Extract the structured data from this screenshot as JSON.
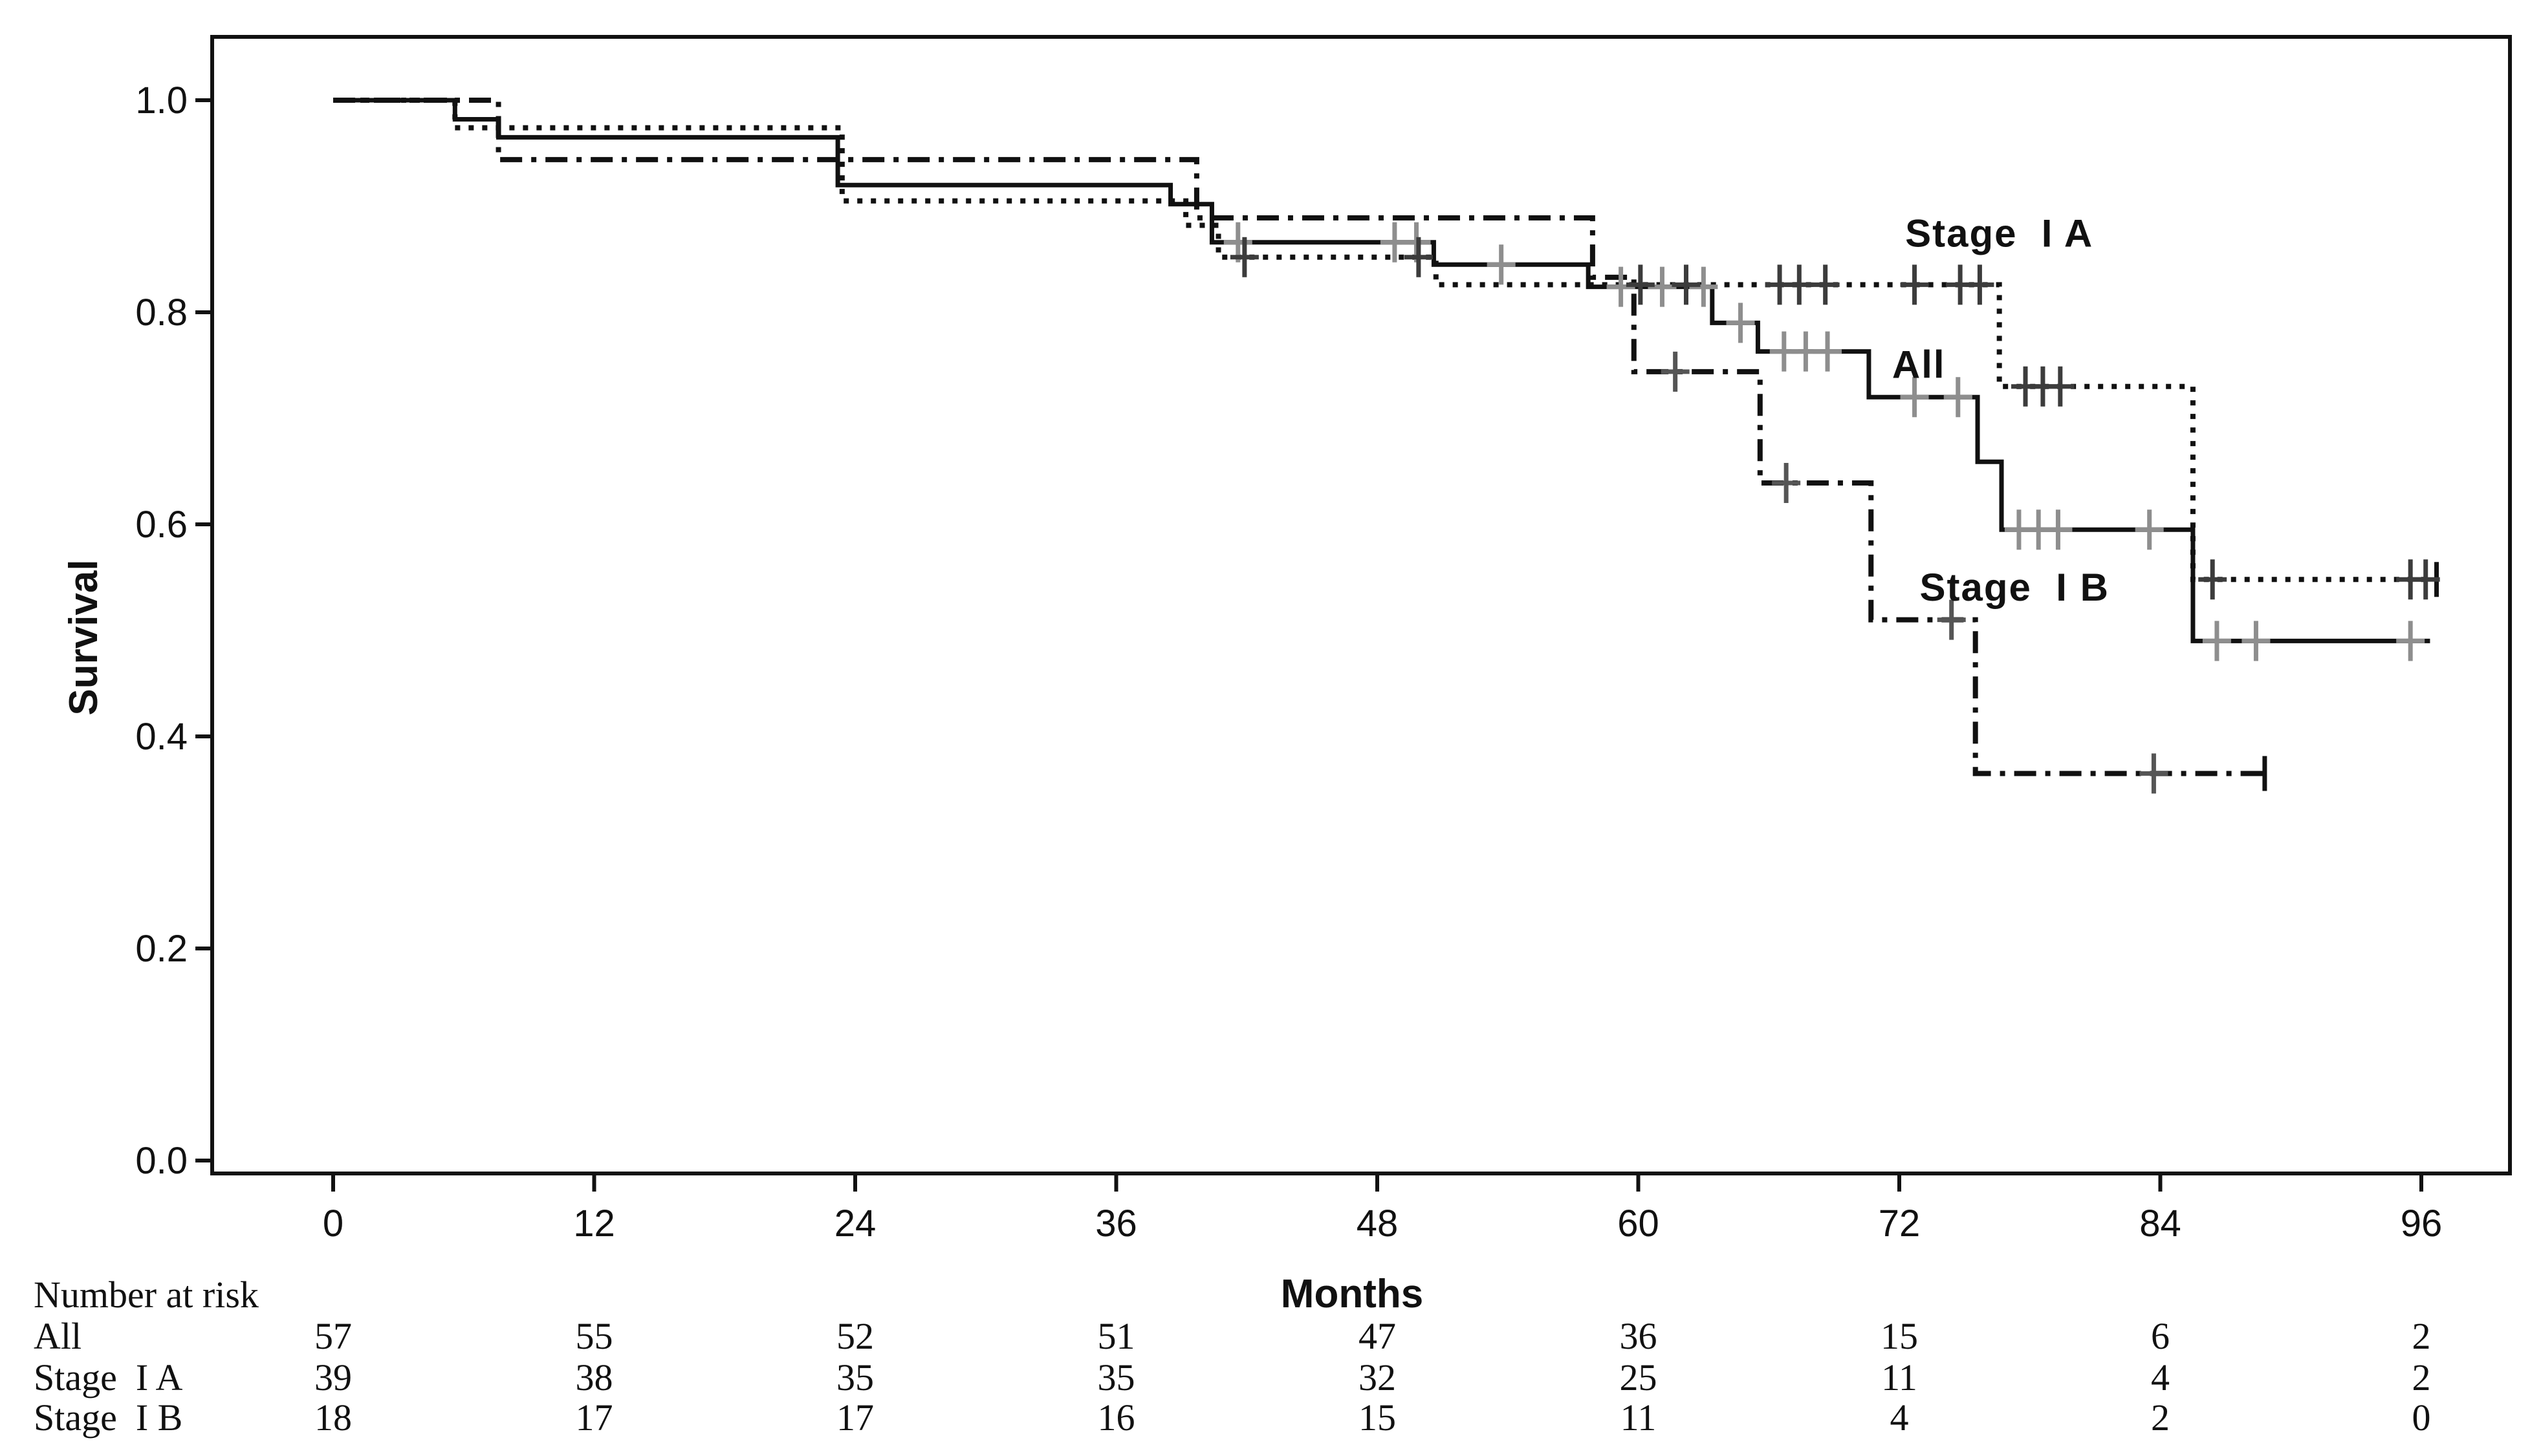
{
  "figure": {
    "background": "#ffffff",
    "ink_color": "#111111",
    "ylabel": "Survival",
    "xlabel": "Months"
  },
  "chart_data": {
    "type": "line",
    "subtype": "kaplan-meier-step-plot",
    "title": "",
    "xlabel": "Months",
    "ylabel": "Survival",
    "xlim": [
      -5.6,
      100.1
    ],
    "ylim": [
      -0.012,
      1.06
    ],
    "grid": false,
    "legend_position": "inline-curve-labels",
    "xticks": [
      0,
      12,
      24,
      36,
      48,
      60,
      72,
      84,
      96
    ],
    "ytick_labels": [
      "1.0",
      "0.8",
      "0.6",
      "0.4",
      "0.2",
      "0.0"
    ],
    "ytick_values": [
      1.0,
      0.8,
      0.6,
      0.4,
      0.2,
      0.0
    ],
    "series": [
      {
        "name": "All",
        "label": "All",
        "line_style": "solid",
        "dash": null,
        "width": 7,
        "color": "#111111",
        "censor_color": "#8e8e8e",
        "steps": [
          [
            0,
            1.0
          ],
          [
            5.6,
            0.982
          ],
          [
            7.6,
            0.965
          ],
          [
            23.2,
            0.92
          ],
          [
            38.5,
            0.902
          ],
          [
            40.4,
            0.866
          ],
          [
            50.6,
            0.845
          ],
          [
            57.7,
            0.824
          ],
          [
            63.4,
            0.79
          ],
          [
            65.5,
            0.763
          ],
          [
            70.6,
            0.72
          ],
          [
            75.6,
            0.659
          ],
          [
            76.7,
            0.595
          ],
          [
            85.5,
            0.49
          ]
        ],
        "end_month": 96.4,
        "end_bar": false,
        "censors": [
          [
            41.6,
            0.866
          ],
          [
            48.8,
            0.866
          ],
          [
            49.8,
            0.866
          ],
          [
            53.7,
            0.845
          ],
          [
            59.2,
            0.824
          ],
          [
            61.1,
            0.824
          ],
          [
            63.0,
            0.824
          ],
          [
            64.7,
            0.79
          ],
          [
            66.7,
            0.763
          ],
          [
            67.7,
            0.763
          ],
          [
            68.7,
            0.763
          ],
          [
            72.7,
            0.72
          ],
          [
            74.7,
            0.72
          ],
          [
            77.5,
            0.595
          ],
          [
            78.4,
            0.595
          ],
          [
            79.3,
            0.595
          ],
          [
            83.5,
            0.595
          ],
          [
            86.6,
            0.49
          ],
          [
            88.4,
            0.49
          ],
          [
            95.5,
            0.49
          ]
        ],
        "label_at": [
          72.9,
          0.738
        ]
      },
      {
        "name": "Stage I A",
        "label": "Stage  I A",
        "line_style": "dotted",
        "dash": "8 13",
        "width": 8,
        "color": "#111111",
        "censor_color": "#3c3c3c",
        "steps": [
          [
            0,
            1.0
          ],
          [
            5.6,
            0.974
          ],
          [
            23.4,
            0.905
          ],
          [
            39.2,
            0.882
          ],
          [
            40.7,
            0.852
          ],
          [
            50.7,
            0.826
          ],
          [
            76.6,
            0.73
          ],
          [
            85.5,
            0.548
          ]
        ],
        "end_month": 96.7,
        "end_bar": true,
        "censors": [
          [
            41.9,
            0.852
          ],
          [
            49.9,
            0.852
          ],
          [
            60.1,
            0.826
          ],
          [
            62.2,
            0.826
          ],
          [
            66.5,
            0.826
          ],
          [
            67.4,
            0.826
          ],
          [
            68.6,
            0.826
          ],
          [
            72.7,
            0.826
          ],
          [
            74.8,
            0.826
          ],
          [
            75.7,
            0.826
          ],
          [
            77.8,
            0.73
          ],
          [
            78.6,
            0.73
          ],
          [
            79.4,
            0.73
          ],
          [
            86.4,
            0.548
          ],
          [
            95.5,
            0.548
          ],
          [
            96.2,
            0.548
          ]
        ],
        "label_at": [
          76.6,
          0.862
        ]
      },
      {
        "name": "Stage I B",
        "label": "Stage  I B",
        "line_style": "dash-dot",
        "dash": "34 14 8 14",
        "width": 8,
        "color": "#111111",
        "censor_color": "#555555",
        "steps": [
          [
            0,
            1.0
          ],
          [
            7.6,
            0.944
          ],
          [
            39.7,
            0.889
          ],
          [
            57.9,
            0.833
          ],
          [
            59.8,
            0.744
          ],
          [
            65.6,
            0.639
          ],
          [
            70.7,
            0.51
          ],
          [
            75.5,
            0.365
          ]
        ],
        "end_month": 88.8,
        "end_bar": true,
        "censors": [
          [
            61.7,
            0.744
          ],
          [
            66.8,
            0.639
          ],
          [
            74.4,
            0.51
          ],
          [
            83.7,
            0.365
          ]
        ],
        "label_at": [
          77.3,
          0.528
        ]
      }
    ],
    "number_at_risk": {
      "header": "Number at risk",
      "months": [
        0,
        12,
        24,
        36,
        48,
        60,
        72,
        84,
        96
      ],
      "rows": [
        {
          "label": "All",
          "values": [
            57,
            55,
            52,
            51,
            47,
            36,
            15,
            6,
            2
          ]
        },
        {
          "label": "Stage  I A",
          "values": [
            39,
            38,
            35,
            35,
            32,
            25,
            11,
            4,
            2
          ]
        },
        {
          "label": "Stage  I B",
          "values": [
            18,
            17,
            17,
            16,
            15,
            11,
            4,
            2,
            0
          ]
        }
      ]
    }
  }
}
